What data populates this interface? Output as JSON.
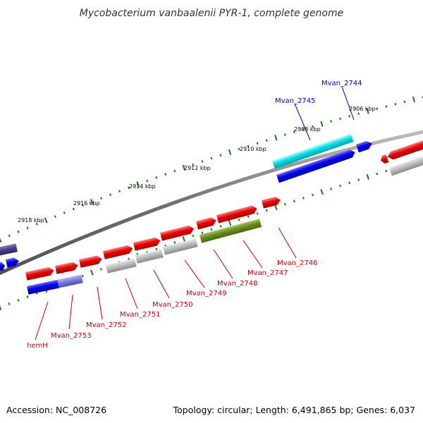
{
  "title": "Mycobacterium vanbaalenii PYR-1, complete genome",
  "footer": {
    "accession": "Accession: NC_008726",
    "summary": "Topology: circular; Length: 6,491,865 bp; Genes: 6,037"
  },
  "colors": {
    "backbone": "#808080",
    "tick": "#1a7a1a",
    "gene_red": "#ee0000",
    "gene_blue": "#0000ee",
    "gene_cyan": "#00e0e8",
    "gene_olive": "#6b8e23",
    "gene_grey": "#b8b8b8",
    "gene_lightblue": "#7b7be0",
    "gene_darkslate": "#483d8b",
    "label_red": "#cc0000",
    "label_blue": "#0000cc"
  },
  "scale_labels": [
    "2906 kbp",
    "2908 kbp",
    "2910 kbp",
    "2912 kbp",
    "2914 kbp",
    "2916 kbp",
    "2918 kbp"
  ],
  "gene_labels": [
    {
      "text": "Mvan_2744",
      "color": "blue"
    },
    {
      "text": "Mvan_2745",
      "color": "blue"
    },
    {
      "text": "Mvan_2746",
      "color": "red"
    },
    {
      "text": "Mvan_2747",
      "color": "red"
    },
    {
      "text": "Mvan_2748",
      "color": "red"
    },
    {
      "text": "Mvan_2749",
      "color": "red"
    },
    {
      "text": "Mvan_2750",
      "color": "red"
    },
    {
      "text": "Mvan_2751",
      "color": "red"
    },
    {
      "text": "Mvan_2752",
      "color": "red"
    },
    {
      "text": "Mvan_2753",
      "color": "red"
    },
    {
      "text": "hemH",
      "color": "red"
    }
  ]
}
